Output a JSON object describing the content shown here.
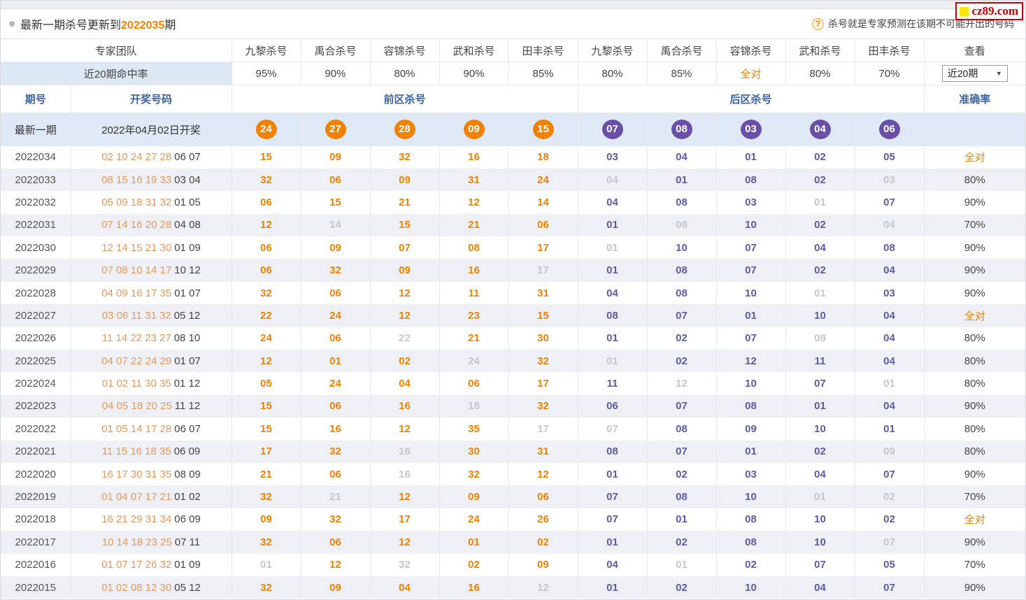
{
  "page": {
    "title_prefix": "最新一期杀号更新到",
    "title_issue": "2022035",
    "title_suffix": "期",
    "tip": "杀号就是专家预测在该期不可能开出的号码",
    "logo": "cz89.com"
  },
  "colors": {
    "accent_orange": "#f08200",
    "draw_orange": "#e9995c",
    "kill_blue": "#5c5ba8",
    "ball_purple": "#6a4fa8",
    "miss_gray": "#c6c6cd",
    "header_blue": "#3e64a0",
    "highlight_bg": "#dfe9f5",
    "alt_row_bg": "#eef0f6"
  },
  "table": {
    "header": {
      "team_label": "专家团队",
      "teams": [
        "九黎杀号",
        "禹合杀号",
        "容锦杀号",
        "武和杀号",
        "田丰杀号",
        "九黎杀号",
        "禹合杀号",
        "容锦杀号",
        "武和杀号",
        "田丰杀号"
      ],
      "view_label": "查看",
      "hit_label": "近20期命中率",
      "hit_rates": [
        "95%",
        "90%",
        "80%",
        "90%",
        "85%",
        "80%",
        "85%",
        "全对",
        "80%",
        "70%"
      ],
      "select_value": "近20期",
      "select_arrow": "▼",
      "period_label": "期号",
      "draw_label": "开奖号码",
      "front_label": "前区杀号",
      "back_label": "后区杀号",
      "accuracy_label": "准确率"
    },
    "latest": {
      "label": "最新一期",
      "date": "2022年04月02日开奖",
      "front": [
        "24",
        "27",
        "28",
        "09",
        "15"
      ],
      "back": [
        "07",
        "08",
        "03",
        "04",
        "06"
      ]
    },
    "rows": [
      {
        "period": "2022034",
        "front_draw": "02 10 24 27 28",
        "back_draw": "06 07",
        "front": [
          "15",
          "09",
          "32",
          "16",
          "18"
        ],
        "front_gray": [],
        "back": [
          "03",
          "04",
          "01",
          "02",
          "05"
        ],
        "back_gray": [],
        "accuracy": "全对"
      },
      {
        "period": "2022033",
        "front_draw": "08 15 16 19 33",
        "back_draw": "03 04",
        "front": [
          "32",
          "06",
          "09",
          "31",
          "24"
        ],
        "front_gray": [],
        "back": [
          "04",
          "01",
          "08",
          "02",
          "03"
        ],
        "back_gray": [
          0,
          4
        ],
        "accuracy": "80%"
      },
      {
        "period": "2022032",
        "front_draw": "05 09 18 31 32",
        "back_draw": "01 05",
        "front": [
          "06",
          "15",
          "21",
          "12",
          "14"
        ],
        "front_gray": [],
        "back": [
          "04",
          "08",
          "03",
          "01",
          "07"
        ],
        "back_gray": [
          3
        ],
        "accuracy": "90%"
      },
      {
        "period": "2022031",
        "front_draw": "07 14 16 20 28",
        "back_draw": "04 08",
        "front": [
          "12",
          "14",
          "15",
          "21",
          "06"
        ],
        "front_gray": [
          1
        ],
        "back": [
          "01",
          "08",
          "10",
          "02",
          "04"
        ],
        "back_gray": [
          1,
          4
        ],
        "accuracy": "70%"
      },
      {
        "period": "2022030",
        "front_draw": "12 14 15 21 30",
        "back_draw": "01 09",
        "front": [
          "06",
          "09",
          "07",
          "08",
          "17"
        ],
        "front_gray": [],
        "back": [
          "01",
          "10",
          "07",
          "04",
          "08"
        ],
        "back_gray": [
          0
        ],
        "accuracy": "90%"
      },
      {
        "period": "2022029",
        "front_draw": "07 08 10 14 17",
        "back_draw": "10 12",
        "front": [
          "06",
          "32",
          "09",
          "16",
          "17"
        ],
        "front_gray": [
          4
        ],
        "back": [
          "01",
          "08",
          "07",
          "02",
          "04"
        ],
        "back_gray": [],
        "accuracy": "90%"
      },
      {
        "period": "2022028",
        "front_draw": "04 09 16 17 35",
        "back_draw": "01 07",
        "front": [
          "32",
          "06",
          "12",
          "11",
          "31"
        ],
        "front_gray": [],
        "back": [
          "04",
          "08",
          "10",
          "01",
          "03"
        ],
        "back_gray": [
          3
        ],
        "accuracy": "90%"
      },
      {
        "period": "2022027",
        "front_draw": "03 06 11 31 32",
        "back_draw": "05 12",
        "front": [
          "22",
          "24",
          "12",
          "23",
          "15"
        ],
        "front_gray": [],
        "back": [
          "08",
          "07",
          "01",
          "10",
          "04"
        ],
        "back_gray": [],
        "accuracy": "全对"
      },
      {
        "period": "2022026",
        "front_draw": "11 14 22 23 27",
        "back_draw": "08 10",
        "front": [
          "24",
          "06",
          "22",
          "21",
          "30"
        ],
        "front_gray": [
          2
        ],
        "back": [
          "01",
          "02",
          "07",
          "08",
          "04"
        ],
        "back_gray": [
          3
        ],
        "accuracy": "80%"
      },
      {
        "period": "2022025",
        "front_draw": "04 07 22 24 29",
        "back_draw": "01 07",
        "front": [
          "12",
          "01",
          "02",
          "24",
          "32"
        ],
        "front_gray": [
          3
        ],
        "back": [
          "01",
          "02",
          "12",
          "11",
          "04"
        ],
        "back_gray": [
          0
        ],
        "accuracy": "80%"
      },
      {
        "period": "2022024",
        "front_draw": "01 02 11 30 35",
        "back_draw": "01 12",
        "front": [
          "05",
          "24",
          "04",
          "06",
          "17"
        ],
        "front_gray": [],
        "back": [
          "11",
          "12",
          "10",
          "07",
          "01"
        ],
        "back_gray": [
          1,
          4
        ],
        "accuracy": "80%"
      },
      {
        "period": "2022023",
        "front_draw": "04 05 18 20 25",
        "back_draw": "11 12",
        "front": [
          "15",
          "06",
          "16",
          "18",
          "32"
        ],
        "front_gray": [
          3
        ],
        "back": [
          "06",
          "07",
          "08",
          "01",
          "04"
        ],
        "back_gray": [],
        "accuracy": "90%"
      },
      {
        "period": "2022022",
        "front_draw": "01 05 14 17 28",
        "back_draw": "06 07",
        "front": [
          "15",
          "16",
          "12",
          "35",
          "17"
        ],
        "front_gray": [
          4
        ],
        "back": [
          "07",
          "08",
          "09",
          "10",
          "01"
        ],
        "back_gray": [
          0
        ],
        "accuracy": "80%"
      },
      {
        "period": "2022021",
        "front_draw": "11 15 16 18 35",
        "back_draw": "06 09",
        "front": [
          "17",
          "32",
          "16",
          "30",
          "31"
        ],
        "front_gray": [
          2
        ],
        "back": [
          "08",
          "07",
          "01",
          "02",
          "09"
        ],
        "back_gray": [
          4
        ],
        "accuracy": "80%"
      },
      {
        "period": "2022020",
        "front_draw": "16 17 30 31 35",
        "back_draw": "08 09",
        "front": [
          "21",
          "06",
          "16",
          "32",
          "12"
        ],
        "front_gray": [
          2
        ],
        "back": [
          "01",
          "02",
          "03",
          "04",
          "07"
        ],
        "back_gray": [],
        "accuracy": "90%"
      },
      {
        "period": "2022019",
        "front_draw": "01 04 07 17 21",
        "back_draw": "01 02",
        "front": [
          "32",
          "21",
          "12",
          "09",
          "06"
        ],
        "front_gray": [
          1
        ],
        "back": [
          "07",
          "08",
          "10",
          "01",
          "02"
        ],
        "back_gray": [
          3,
          4
        ],
        "accuracy": "70%"
      },
      {
        "period": "2022018",
        "front_draw": "16 21 29 31 34",
        "back_draw": "06 09",
        "front": [
          "09",
          "32",
          "17",
          "24",
          "26"
        ],
        "front_gray": [],
        "back": [
          "07",
          "01",
          "08",
          "10",
          "02"
        ],
        "back_gray": [],
        "accuracy": "全对"
      },
      {
        "period": "2022017",
        "front_draw": "10 14 18 23 25",
        "back_draw": "07 11",
        "front": [
          "32",
          "06",
          "12",
          "01",
          "02"
        ],
        "front_gray": [],
        "back": [
          "01",
          "02",
          "08",
          "10",
          "07"
        ],
        "back_gray": [
          4
        ],
        "accuracy": "90%"
      },
      {
        "period": "2022016",
        "front_draw": "01 07 17 26 32",
        "back_draw": "01 09",
        "front": [
          "01",
          "12",
          "32",
          "02",
          "09"
        ],
        "front_gray": [
          0,
          2
        ],
        "back": [
          "04",
          "01",
          "02",
          "07",
          "05"
        ],
        "back_gray": [
          1
        ],
        "accuracy": "70%"
      },
      {
        "period": "2022015",
        "front_draw": "01 02 08 12 30",
        "back_draw": "05 12",
        "front": [
          "32",
          "09",
          "04",
          "16",
          "12"
        ],
        "front_gray": [
          4
        ],
        "back": [
          "01",
          "02",
          "10",
          "04",
          "07"
        ],
        "back_gray": [],
        "accuracy": "90%"
      }
    ]
  }
}
